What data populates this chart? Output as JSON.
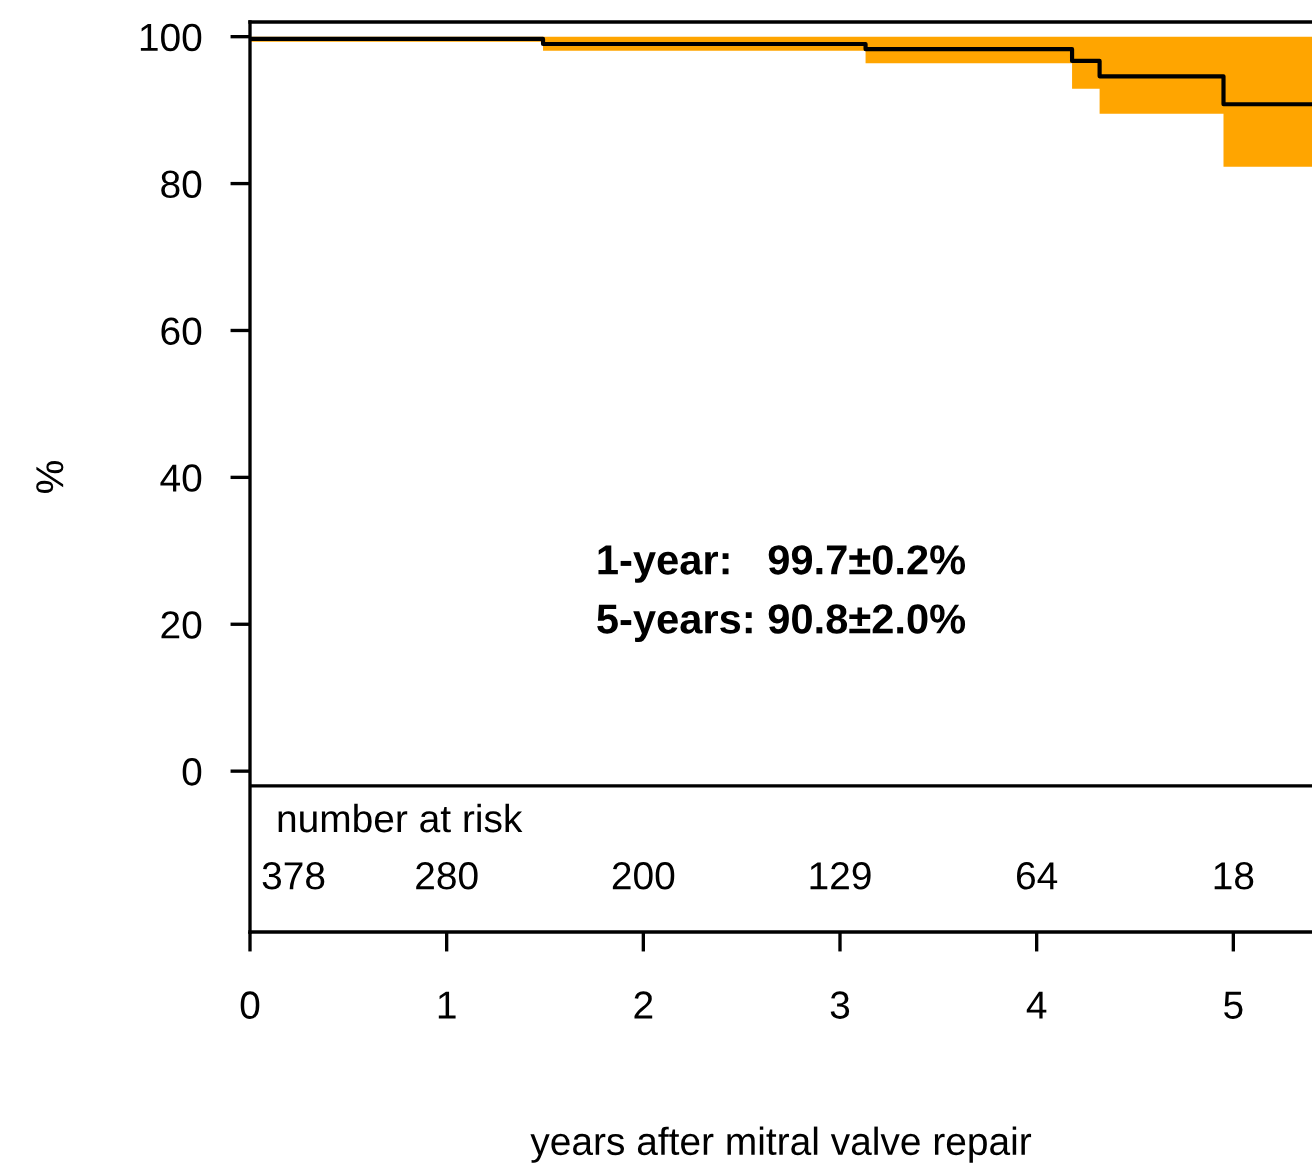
{
  "chart_data": {
    "type": "step",
    "ylabel": "%",
    "xlabel": "years after mitral valve repair",
    "xlim": [
      0,
      5.4
    ],
    "xticks": [
      0,
      1,
      2,
      3,
      4,
      5
    ],
    "ylim": [
      -21.9,
      102
    ],
    "yticks": [
      0,
      20,
      40,
      60,
      80,
      100
    ],
    "grid": false,
    "legend": false,
    "ref_lines": [
      {
        "axis": "y",
        "value": -2,
        "color": "#000000"
      }
    ],
    "annotations": [
      "1-year:   99.7±0.2%",
      "5-years: 90.8±2.0%",
      "number at risk",
      "378",
      "280",
      "200",
      "129",
      "64",
      "18"
    ],
    "series": [
      {
        "color": "#000000",
        "x": [
          0,
          1.49,
          3.13,
          4.18,
          4.32,
          4.95,
          5.4
        ],
        "values": [
          99.7,
          99.0,
          98.3,
          96.7,
          94.6,
          90.8,
          90.8
        ],
        "lower": [
          99.3,
          98.1,
          96.4,
          92.9,
          89.5,
          82.3,
          82.3
        ],
        "upper": [
          100,
          100,
          100,
          100,
          100,
          100,
          100
        ]
      }
    ]
  }
}
